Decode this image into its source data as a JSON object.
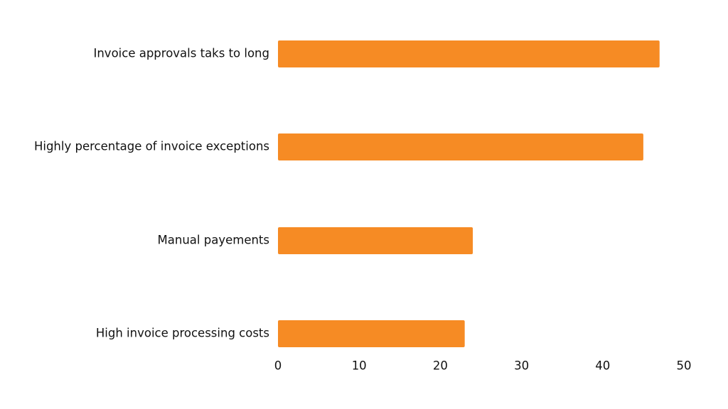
{
  "chart_data": {
    "type": "bar",
    "orientation": "horizontal",
    "title": "",
    "xlabel": "",
    "ylabel": "",
    "categories": [
      "Invoice approvals taks to long",
      "Highly percentage of invoice exceptions",
      "Manual payements",
      "High invoice processing costs"
    ],
    "values": [
      47,
      45,
      24,
      23
    ],
    "xlim": [
      0,
      50
    ],
    "xticks": [
      "0",
      "10",
      "20",
      "30",
      "40",
      "50"
    ],
    "grid": false,
    "legend": "none",
    "bar_color": "#F68B24"
  }
}
